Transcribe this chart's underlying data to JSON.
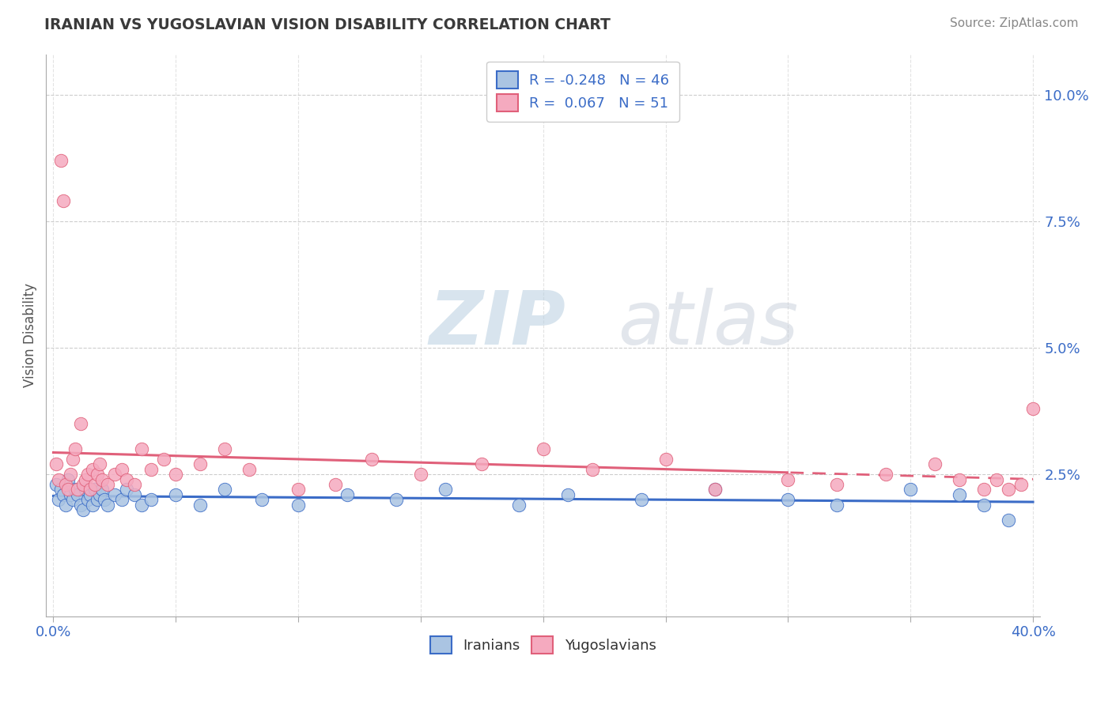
{
  "title": "IRANIAN VS YUGOSLAVIAN VISION DISABILITY CORRELATION CHART",
  "source": "Source: ZipAtlas.com",
  "ylabel": "Vision Disability",
  "xlim": [
    -0.003,
    0.403
  ],
  "ylim": [
    -0.003,
    0.108
  ],
  "xticks": [
    0.0,
    0.05,
    0.1,
    0.15,
    0.2,
    0.25,
    0.3,
    0.35,
    0.4
  ],
  "xtick_labels": [
    "0.0%",
    "",
    "",
    "",
    "",
    "",
    "",
    "",
    "40.0%"
  ],
  "ytick_labels_right": [
    "2.5%",
    "5.0%",
    "7.5%",
    "10.0%"
  ],
  "yticks_right": [
    0.025,
    0.05,
    0.075,
    0.1
  ],
  "iranian_R": -0.248,
  "iranian_N": 46,
  "yugoslavian_R": 0.067,
  "yugoslavian_N": 51,
  "iranian_color": "#aac4e2",
  "yugoslavian_color": "#f5aabf",
  "iranian_line_color": "#3b6cc7",
  "yugoslavian_line_color": "#e0607a",
  "background_color": "#ffffff",
  "grid_color": "#c8c8c8",
  "title_color": "#3a3a3a",
  "label_color": "#3b6cc7",
  "iranians_x": [
    0.001,
    0.002,
    0.003,
    0.004,
    0.005,
    0.006,
    0.007,
    0.008,
    0.009,
    0.01,
    0.011,
    0.012,
    0.013,
    0.014,
    0.015,
    0.016,
    0.017,
    0.018,
    0.019,
    0.02,
    0.021,
    0.022,
    0.025,
    0.028,
    0.03,
    0.033,
    0.036,
    0.04,
    0.05,
    0.06,
    0.07,
    0.085,
    0.1,
    0.12,
    0.14,
    0.16,
    0.19,
    0.21,
    0.24,
    0.27,
    0.3,
    0.32,
    0.35,
    0.37,
    0.38,
    0.39
  ],
  "iranians_y": [
    0.023,
    0.02,
    0.022,
    0.021,
    0.019,
    0.024,
    0.021,
    0.02,
    0.022,
    0.021,
    0.019,
    0.018,
    0.022,
    0.02,
    0.021,
    0.019,
    0.022,
    0.02,
    0.021,
    0.022,
    0.02,
    0.019,
    0.021,
    0.02,
    0.022,
    0.021,
    0.019,
    0.02,
    0.021,
    0.019,
    0.022,
    0.02,
    0.019,
    0.021,
    0.02,
    0.022,
    0.019,
    0.021,
    0.02,
    0.022,
    0.02,
    0.019,
    0.022,
    0.021,
    0.019,
    0.016
  ],
  "yugoslavians_x": [
    0.001,
    0.002,
    0.003,
    0.004,
    0.005,
    0.006,
    0.007,
    0.008,
    0.009,
    0.01,
    0.011,
    0.012,
    0.013,
    0.014,
    0.015,
    0.016,
    0.017,
    0.018,
    0.019,
    0.02,
    0.022,
    0.025,
    0.028,
    0.03,
    0.033,
    0.036,
    0.04,
    0.045,
    0.05,
    0.06,
    0.07,
    0.08,
    0.1,
    0.115,
    0.13,
    0.15,
    0.175,
    0.2,
    0.22,
    0.25,
    0.27,
    0.3,
    0.32,
    0.34,
    0.36,
    0.37,
    0.38,
    0.385,
    0.39,
    0.395,
    0.4
  ],
  "yugoslavians_y": [
    0.027,
    0.024,
    0.087,
    0.079,
    0.023,
    0.022,
    0.025,
    0.028,
    0.03,
    0.022,
    0.035,
    0.023,
    0.024,
    0.025,
    0.022,
    0.026,
    0.023,
    0.025,
    0.027,
    0.024,
    0.023,
    0.025,
    0.026,
    0.024,
    0.023,
    0.03,
    0.026,
    0.028,
    0.025,
    0.027,
    0.03,
    0.026,
    0.022,
    0.023,
    0.028,
    0.025,
    0.027,
    0.03,
    0.026,
    0.028,
    0.022,
    0.024,
    0.023,
    0.025,
    0.027,
    0.024,
    0.022,
    0.024,
    0.022,
    0.023,
    0.038
  ],
  "watermark_zip_color": "#c5d5e8",
  "watermark_atlas_color": "#c5c8d5"
}
